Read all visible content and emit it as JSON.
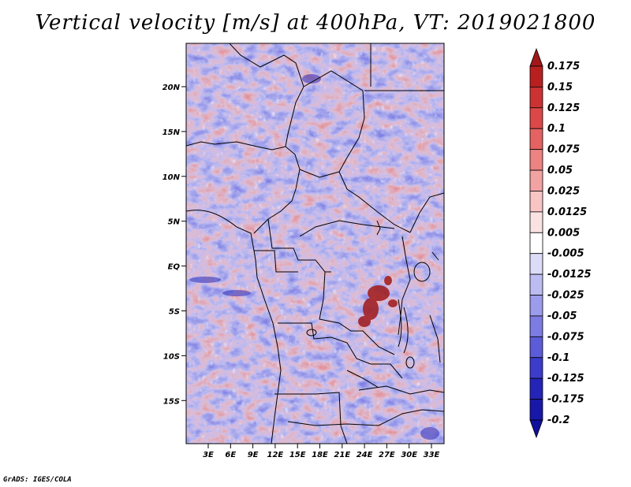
{
  "title": "Vertical velocity [m/s] at 400hPa, VT: 2019021800",
  "credit": "GrADS: IGES/COLA",
  "lat_ticks": [
    "20N",
    "15N",
    "10N",
    "5N",
    "EQ",
    "5S",
    "10S",
    "15S"
  ],
  "lon_ticks": [
    "3E",
    "6E",
    "9E",
    "12E",
    "15E",
    "18E",
    "21E",
    "24E",
    "27E",
    "30E",
    "33E"
  ],
  "colorbar": {
    "labels": [
      "0.175",
      "0.15",
      "0.125",
      "0.1",
      "0.075",
      "0.05",
      "0.025",
      "0.0125",
      "0.005",
      "-0.005",
      "-0.0125",
      "-0.025",
      "-0.05",
      "-0.075",
      "-0.1",
      "-0.125",
      "-0.175",
      "-0.2"
    ],
    "colors": [
      "#a01818",
      "#b82020",
      "#cc3232",
      "#dc4848",
      "#e46262",
      "#ec8282",
      "#f2a2a2",
      "#f8c4c4",
      "#fbe2e2",
      "#ffffff",
      "#dcdcf8",
      "#bcbcf2",
      "#9c9cec",
      "#7c7ce2",
      "#5c5cd8",
      "#3c3cca",
      "#2424b8",
      "#1818a8",
      "#10109c"
    ]
  }
}
